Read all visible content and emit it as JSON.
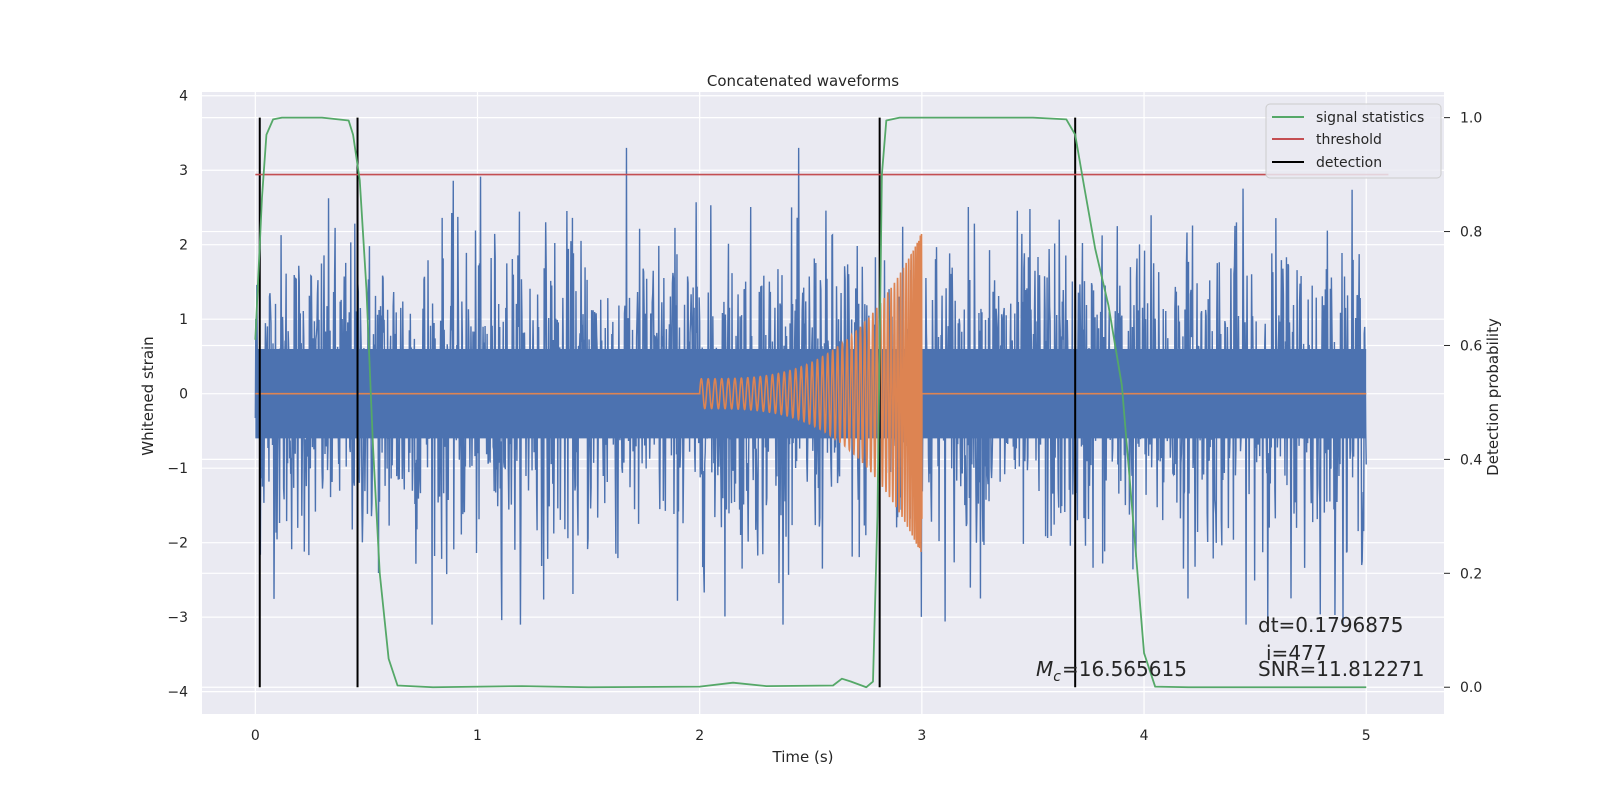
{
  "chart_data": {
    "type": "line",
    "title": "Concatenated waveforms",
    "xlabel": "Time (s)",
    "ylabel": "Whitened strain",
    "y2label": "Detection probability",
    "xlim": [
      -0.24,
      5.35
    ],
    "ylim": [
      -4.3,
      4.05
    ],
    "y2lim": [
      -0.047,
      1.045
    ],
    "xticks": [
      0,
      1,
      2,
      3,
      4,
      5
    ],
    "yticks": [
      -4,
      -3,
      -2,
      -1,
      0,
      1,
      2,
      3,
      4
    ],
    "y2ticks": [
      0.0,
      0.2,
      0.4,
      0.6,
      0.8,
      1.0
    ],
    "grid": true,
    "legend_position": "top-right",
    "colors": {
      "background": "#eaeaf2",
      "grid": "#ffffff",
      "strain": "#4c72b0",
      "template": "#dd8452",
      "statistic": "#55a868",
      "threshold": "#c44e52",
      "detection": "#000000"
    },
    "legend": [
      {
        "label": "signal statistics",
        "color": "#55a868"
      },
      {
        "label": "threshold",
        "color": "#c44e52"
      },
      {
        "label": "detection",
        "color": "#000000"
      }
    ],
    "series": [
      {
        "name": "",
        "axis": "left",
        "kind": "noise",
        "x_range": [
          0,
          5
        ],
        "y_range": [
          -3.1,
          3.3
        ],
        "envelope": [
          0.6,
          -0.6
        ]
      },
      {
        "name": "",
        "axis": "left",
        "kind": "chirp",
        "x_range": [
          2.0,
          3.0
        ],
        "amplitude_start": 0.2,
        "amplitude_end": 2.2,
        "baseline": 0
      },
      {
        "name": "signal statistics",
        "axis": "right",
        "x": [
          0.0,
          0.03,
          0.05,
          0.08,
          0.12,
          0.3,
          0.42,
          0.44,
          0.47,
          0.5,
          0.53,
          0.56,
          0.6,
          0.64,
          0.8,
          1.2,
          1.5,
          2.0,
          2.15,
          2.3,
          2.6,
          2.64,
          2.68,
          2.75,
          2.78,
          2.8,
          2.82,
          2.84,
          2.9,
          3.5,
          3.65,
          3.69,
          3.73,
          3.78,
          3.84,
          3.9,
          3.96,
          4.0,
          4.05,
          4.2,
          4.6,
          5.0
        ],
        "y": [
          0.61,
          0.86,
          0.97,
          0.997,
          1.0,
          1.0,
          0.995,
          0.97,
          0.89,
          0.7,
          0.42,
          0.2,
          0.05,
          0.003,
          0.0,
          0.002,
          0.0,
          0.001,
          0.008,
          0.002,
          0.003,
          0.015,
          0.01,
          0.0,
          0.01,
          0.3,
          0.9,
          0.995,
          1.0,
          1.0,
          0.997,
          0.97,
          0.88,
          0.77,
          0.67,
          0.53,
          0.25,
          0.06,
          0.001,
          0.0,
          0.0,
          0.0
        ]
      },
      {
        "name": "threshold",
        "axis": "right",
        "x": [
          0,
          5.1
        ],
        "y": [
          0.9,
          0.9
        ]
      }
    ],
    "detections": [
      0.02,
      0.46,
      2.81,
      3.69
    ],
    "annotations": {
      "mc": "=16.565615",
      "dt": "dt=0.1796875",
      "i": "i=477",
      "snr": "SNR=11.812271"
    }
  }
}
